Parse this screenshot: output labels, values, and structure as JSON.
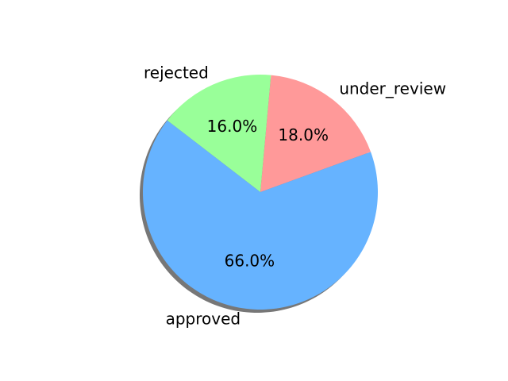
{
  "chart_data": {
    "type": "pie",
    "categories": [
      "under_review",
      "rejected",
      "approved"
    ],
    "values": [
      18.0,
      16.0,
      66.0
    ],
    "value_labels": [
      "18.0%",
      "16.0%",
      "66.0%"
    ],
    "colors": [
      "#ff9999",
      "#99ff99",
      "#66b3ff"
    ],
    "shadow_color": "#777777",
    "shadow": true,
    "start_angle_degrees": 20,
    "direction": "counterclockwise"
  }
}
